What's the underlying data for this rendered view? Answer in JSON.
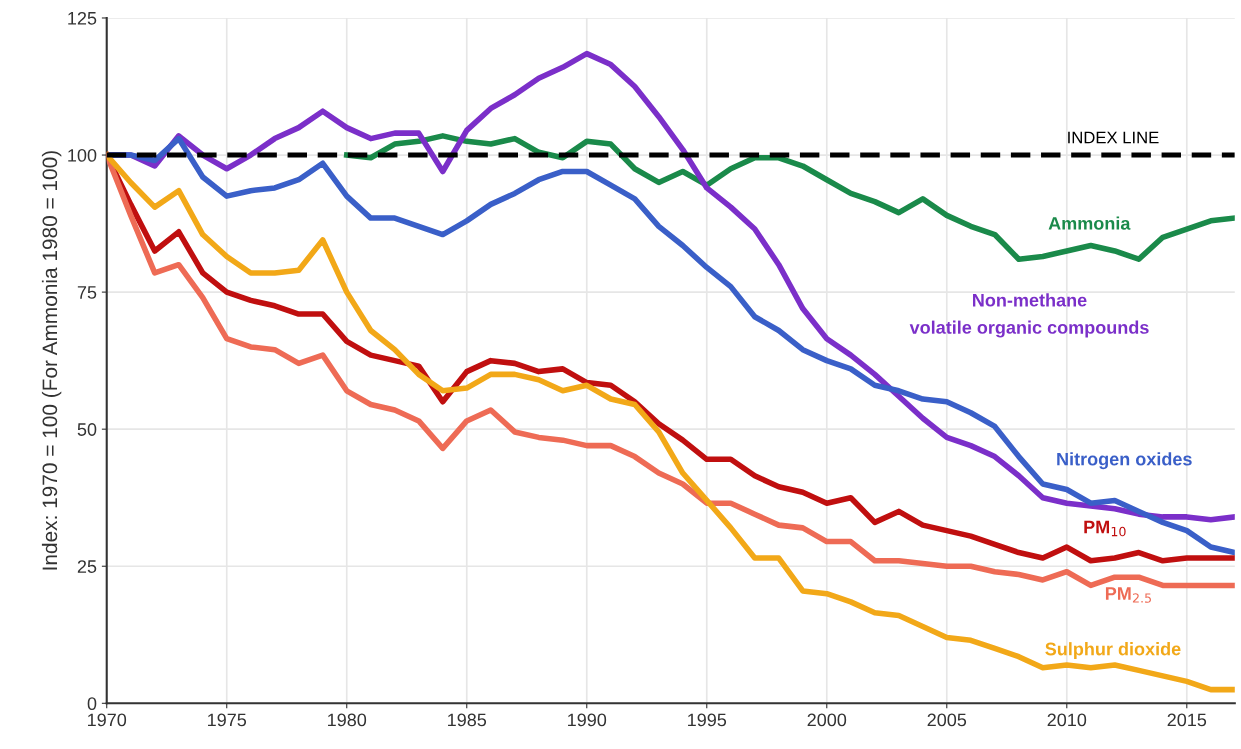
{
  "chart_data": {
    "type": "line",
    "ylabel": "Index: 1970 = 100 (For Ammonia 1980 = 100)",
    "x": [
      1970,
      1971,
      1972,
      1973,
      1974,
      1975,
      1976,
      1977,
      1978,
      1979,
      1980,
      1981,
      1982,
      1983,
      1984,
      1985,
      1986,
      1987,
      1988,
      1989,
      1990,
      1991,
      1992,
      1993,
      1994,
      1995,
      1996,
      1997,
      1998,
      1999,
      2000,
      2001,
      2002,
      2003,
      2004,
      2005,
      2006,
      2007,
      2008,
      2009,
      2010,
      2011,
      2012,
      2013,
      2014,
      2015,
      2016,
      2017
    ],
    "xlim": [
      1970,
      2017
    ],
    "xticks": [
      1970,
      1975,
      1980,
      1985,
      1990,
      1995,
      2000,
      2005,
      2010,
      2015
    ],
    "ylim": [
      0,
      125
    ],
    "yticks": [
      0,
      25,
      50,
      75,
      100,
      125
    ],
    "grid": true,
    "legend": false,
    "marker": "none",
    "line_style": "solid",
    "ref_lines": [
      {
        "axis": "y",
        "value": 100,
        "label": "INDEX LINE",
        "color": "#000000",
        "line_style": "dashed"
      }
    ],
    "series": [
      {
        "name": "Ammonia",
        "color": "#1a8a4a",
        "x": [
          1980,
          1981,
          1982,
          1983,
          1984,
          1985,
          1986,
          1987,
          1988,
          1989,
          1990,
          1991,
          1992,
          1993,
          1994,
          1995,
          1996,
          1997,
          1998,
          1999,
          2000,
          2001,
          2002,
          2003,
          2004,
          2005,
          2006,
          2007,
          2008,
          2009,
          2010,
          2011,
          2012,
          2013,
          2014,
          2015,
          2016,
          2017
        ],
        "values": [
          100,
          99.5,
          102,
          102.5,
          103.5,
          102.5,
          102,
          103,
          100.5,
          99.5,
          102.5,
          102,
          97.5,
          95,
          97,
          94.5,
          97.5,
          99.5,
          99.5,
          98,
          95.5,
          93,
          91.5,
          89.5,
          92,
          89,
          87,
          85.5,
          81,
          81.5,
          82.5,
          83.5,
          82.5,
          81,
          85,
          86.5,
          88,
          88.5
        ]
      },
      {
        "name": "Non-methane\nvolatile organic compounds",
        "color": "#7b2fc9",
        "values": [
          100,
          100,
          98,
          103.5,
          100,
          97.5,
          100,
          103,
          105,
          108,
          105,
          103,
          104,
          104,
          97,
          104.5,
          108.5,
          111,
          114,
          116,
          118.5,
          116.5,
          112.5,
          107,
          101,
          94,
          90.5,
          86.5,
          80,
          72,
          66.5,
          63.5,
          60,
          56,
          52,
          48.5,
          47,
          45,
          41.5,
          37.5,
          36.5,
          36,
          35.5,
          34.5,
          34,
          34,
          33.5,
          34
        ]
      },
      {
        "name": "Nitrogen oxides",
        "color": "#3a5fc8",
        "values": [
          100,
          100,
          99,
          103,
          96,
          92.5,
          93.5,
          94,
          95.5,
          98.5,
          92.5,
          88.5,
          88.5,
          87,
          85.5,
          88,
          91,
          93,
          95.5,
          97,
          97,
          94.5,
          92,
          87,
          83.5,
          79.5,
          76,
          70.5,
          68,
          64.5,
          62.5,
          61,
          58,
          57,
          55.5,
          55,
          53,
          50.5,
          45,
          40,
          39,
          36.5,
          37,
          35,
          33,
          31.5,
          28.5,
          27.5
        ]
      },
      {
        "name": "PM$_{10}$",
        "color": "#c00f0f",
        "values": [
          100,
          91,
          82.5,
          86,
          78.5,
          75,
          73.5,
          72.5,
          71,
          71,
          66,
          63.5,
          62.5,
          61.5,
          55,
          60.5,
          62.5,
          62,
          60.5,
          61,
          58.5,
          58,
          55,
          51,
          48,
          44.5,
          44.5,
          41.5,
          39.5,
          38.5,
          36.5,
          37.5,
          33,
          35,
          32.5,
          31.5,
          30.5,
          29,
          27.5,
          26.5,
          28.5,
          26,
          26.5,
          27.5,
          26,
          26.5,
          26.5,
          26.5
        ]
      },
      {
        "name": "PM$_{2.5}$",
        "color": "#ee6b55",
        "values": [
          100,
          89,
          78.5,
          80,
          74,
          66.5,
          65,
          64.5,
          62,
          63.5,
          57,
          54.5,
          53.5,
          51.5,
          46.5,
          51.5,
          53.5,
          49.5,
          48.5,
          48,
          47,
          47,
          45,
          42,
          40,
          36.5,
          36.5,
          34.5,
          32.5,
          32,
          29.5,
          29.5,
          26,
          26,
          25.5,
          25,
          25,
          24,
          23.5,
          22.5,
          24,
          21.5,
          23,
          23,
          21.5,
          21.5,
          21.5,
          21.5
        ]
      },
      {
        "name": "Sulphur dioxide",
        "color": "#f2a818",
        "values": [
          100,
          95,
          90.5,
          93.5,
          85.5,
          81.5,
          78.5,
          78.5,
          79,
          84.5,
          75,
          68,
          64.5,
          60,
          57,
          57.5,
          60,
          60,
          59,
          57,
          58,
          55.5,
          54.5,
          49.5,
          42,
          37,
          32,
          26.5,
          26.5,
          20.5,
          20,
          18.5,
          16.5,
          16,
          14,
          12,
          11.5,
          10,
          8.5,
          6.5,
          7,
          6.5,
          7,
          6,
          5,
          4,
          2.5,
          2.5
        ]
      }
    ]
  }
}
